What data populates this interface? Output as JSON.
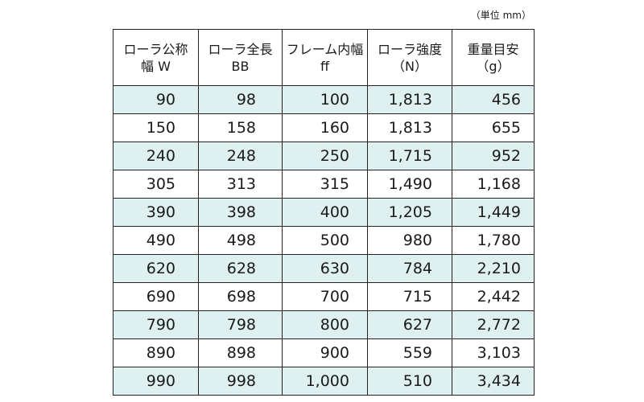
{
  "unit_note": "（単位 mm）",
  "headers": [
    {
      "line1": "ローラ公称",
      "line2": "幅 W"
    },
    {
      "line1": "ローラ全長",
      "line2": "BB"
    },
    {
      "line1": "フレーム内幅",
      "line2": "ff"
    },
    {
      "line1": "ローラ強度",
      "line2": "（N）"
    },
    {
      "line1": "重量目安",
      "line2": "（g）"
    }
  ],
  "rows": [
    [
      "90",
      "98",
      "100",
      "1,813",
      "456"
    ],
    [
      "150",
      "158",
      "160",
      "1,813",
      "655"
    ],
    [
      "240",
      "248",
      "250",
      "1,715",
      "952"
    ],
    [
      "305",
      "313",
      "315",
      "1,490",
      "1,168"
    ],
    [
      "390",
      "398",
      "400",
      "1,205",
      "1,449"
    ],
    [
      "490",
      "498",
      "500",
      "980",
      "1,780"
    ],
    [
      "620",
      "628",
      "630",
      "784",
      "2,210"
    ],
    [
      "690",
      "698",
      "700",
      "715",
      "2,442"
    ],
    [
      "790",
      "798",
      "800",
      "627",
      "2,772"
    ],
    [
      "890",
      "898",
      "900",
      "559",
      "3,103"
    ],
    [
      "990",
      "998",
      "1,000",
      "510",
      "3,434"
    ]
  ],
  "colors": {
    "shaded_row": "#dff0f1",
    "border": "#222222"
  }
}
